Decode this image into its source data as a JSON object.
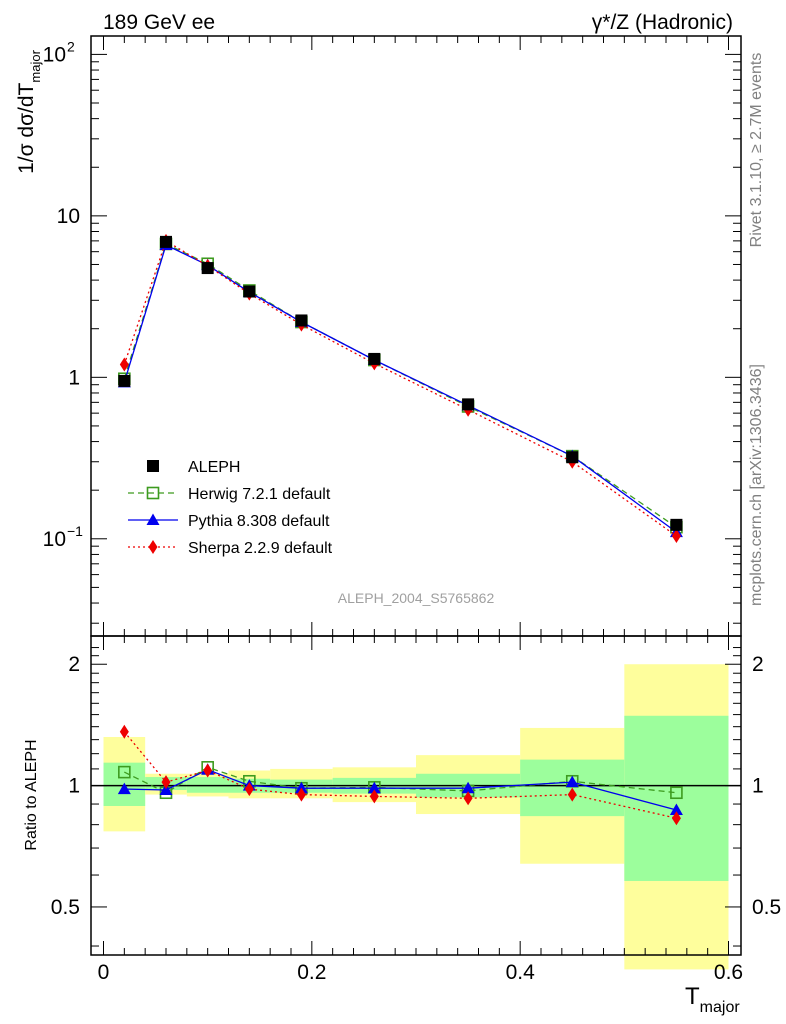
{
  "header": {
    "left": "189 GeV ee",
    "right": "γ*/Z (Hadronic)"
  },
  "side": {
    "rivet": "Rivet 3.1.10, ≥ 2.7M events",
    "mcplots": "mcplots.cern.ch [arXiv:1306.3436]"
  },
  "watermark": "ALEPH_2004_S5765862",
  "xlabel_main": "T",
  "xlabel_sub": "major",
  "ylabel_main": {
    "label": "1/σ  dσ/dT",
    "sub": "major"
  },
  "ylabel_ratio": "Ratio to ALEPH",
  "colors": {
    "aleph": "#000000",
    "herwig": "#3d9b1f",
    "pythia": "#0000ee",
    "sherpa": "#ee0000",
    "band_inner": "#9cfe9c",
    "band_outer": "#fefe9c"
  },
  "chart_data": [
    {
      "type": "line",
      "yscale": "log",
      "ylim": [
        0.025,
        130
      ],
      "xlim": [
        -0.012,
        0.612
      ],
      "yticks": [
        {
          "label_main": "10",
          "label_exp": "−1"
        },
        {
          "label_main": "1",
          "label_exp": ""
        },
        {
          "label_main": "10",
          "label_exp": ""
        },
        {
          "label_main": "10",
          "label_exp": "2"
        }
      ],
      "ytick_values": [
        0.1,
        1,
        10,
        100
      ],
      "x": [
        0.02,
        0.06,
        0.1,
        0.14,
        0.19,
        0.26,
        0.35,
        0.45,
        0.55
      ],
      "series": [
        {
          "name": "ALEPH",
          "marker": "square-filled",
          "values": [
            0.95,
            6.9,
            4.75,
            3.4,
            2.25,
            1.3,
            0.68,
            0.32,
            0.122
          ]
        },
        {
          "name": "Herwig 7.2.1 default",
          "marker": "square-open",
          "line": "dashed",
          "values": [
            0.98,
            6.7,
            5.05,
            3.45,
            2.2,
            1.28,
            0.66,
            0.325,
            0.118
          ]
        },
        {
          "name": "Pythia 8.308 default",
          "marker": "triangle",
          "line": "solid",
          "values": [
            0.93,
            6.6,
            4.95,
            3.37,
            2.2,
            1.28,
            0.67,
            0.325,
            0.11
          ]
        },
        {
          "name": "Sherpa 2.2.9 default",
          "marker": "diamond",
          "line": "dotted",
          "values": [
            1.2,
            7.0,
            4.9,
            3.3,
            2.12,
            1.22,
            0.63,
            0.3,
            0.104
          ]
        }
      ]
    },
    {
      "type": "line",
      "yscale": "log",
      "ylim": [
        0.38,
        2.35
      ],
      "xlim": [
        -0.012,
        0.612
      ],
      "xticks": [
        "0",
        "0.2",
        "0.4",
        "0.6"
      ],
      "xtick_values": [
        0,
        0.2,
        0.4,
        0.6
      ],
      "yticks": [
        "0.5",
        "1",
        "2"
      ],
      "ytick_values": [
        0.5,
        1,
        2
      ],
      "bins": [
        [
          0.0,
          0.04
        ],
        [
          0.04,
          0.08
        ],
        [
          0.08,
          0.12
        ],
        [
          0.12,
          0.16
        ],
        [
          0.16,
          0.22
        ],
        [
          0.22,
          0.3
        ],
        [
          0.3,
          0.4
        ],
        [
          0.4,
          0.5
        ],
        [
          0.5,
          0.6
        ]
      ],
      "band_inner": [
        [
          0.89,
          1.14
        ],
        [
          0.975,
          1.05
        ],
        [
          0.96,
          1.05
        ],
        [
          0.96,
          1.04
        ],
        [
          0.96,
          1.035
        ],
        [
          0.955,
          1.045
        ],
        [
          0.935,
          1.07
        ],
        [
          0.84,
          1.16
        ],
        [
          0.58,
          1.49
        ]
      ],
      "band_outer": [
        [
          0.77,
          1.32
        ],
        [
          0.95,
          1.07
        ],
        [
          0.94,
          1.07
        ],
        [
          0.93,
          1.09
        ],
        [
          0.93,
          1.1
        ],
        [
          0.91,
          1.11
        ],
        [
          0.85,
          1.19
        ],
        [
          0.64,
          1.39
        ],
        [
          0.35,
          2.0
        ]
      ],
      "x": [
        0.02,
        0.06,
        0.1,
        0.14,
        0.19,
        0.26,
        0.35,
        0.45,
        0.55
      ],
      "series": [
        {
          "name": "Herwig 7.2.1 default",
          "values": [
            1.08,
            0.96,
            1.11,
            1.025,
            0.985,
            0.99,
            0.97,
            1.025,
            0.96
          ]
        },
        {
          "name": "Pythia 8.308 default",
          "values": [
            0.98,
            0.975,
            1.095,
            1.0,
            0.985,
            0.985,
            0.985,
            1.02,
            0.87
          ]
        },
        {
          "name": "Sherpa 2.2.9 default",
          "values": [
            1.36,
            1.02,
            1.09,
            0.98,
            0.95,
            0.94,
            0.93,
            0.95,
            0.83
          ]
        }
      ]
    }
  ]
}
